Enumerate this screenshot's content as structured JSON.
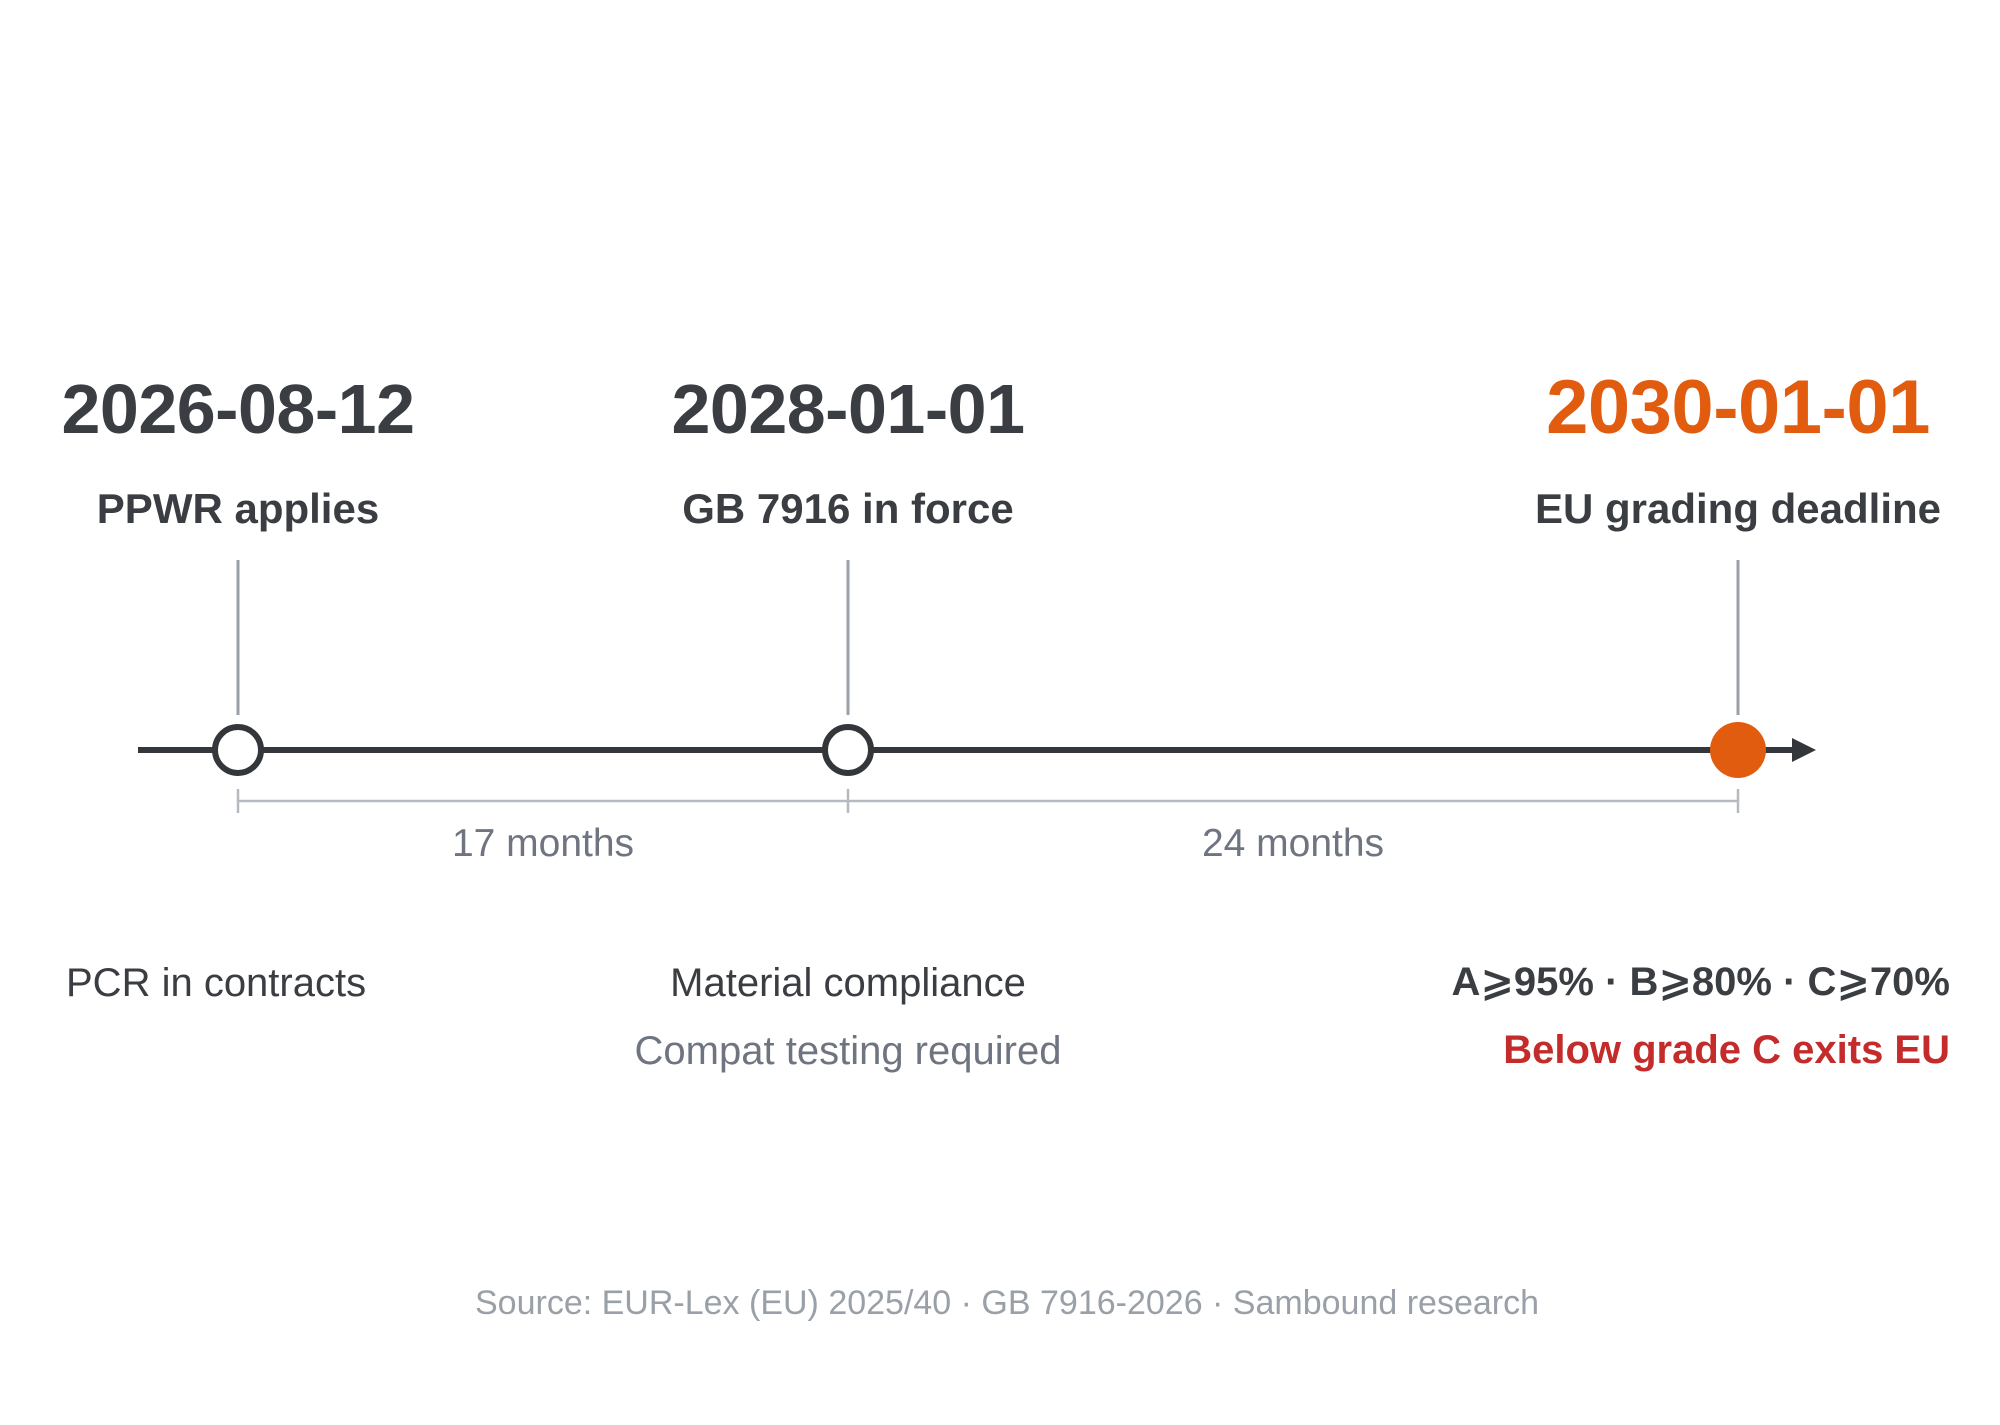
{
  "colors": {
    "text_dark": "#3a3d42",
    "text_muted": "#6f7580",
    "text_light": "#9aa0a8",
    "axis": "#33363b",
    "connector": "#9aa0a8",
    "accent_orange": "#e25c10",
    "alert_red": "#c42b2b"
  },
  "milestones": [
    {
      "date": "2026-08-12",
      "label": "PPWR applies",
      "marker": "hollow-circle"
    },
    {
      "date": "2028-01-01",
      "label": "GB 7916 in force",
      "marker": "hollow-circle"
    },
    {
      "date": "2030-01-01",
      "label": "EU grading deadline",
      "marker": "filled-orange-circle"
    }
  ],
  "intervals": [
    {
      "text": "17 months"
    },
    {
      "text": "24 months"
    }
  ],
  "notes": {
    "m1": {
      "line1": "PCR in contracts"
    },
    "m2": {
      "line1": "Material compliance",
      "line2": "Compat testing required"
    },
    "m3": {
      "line1": "A⩾95% · B⩾80% · C⩾70%",
      "line2": "Below grade C exits EU"
    }
  },
  "source": "Source: EUR-Lex (EU) 2025/40 · GB 7916-2026 · Sambound research"
}
